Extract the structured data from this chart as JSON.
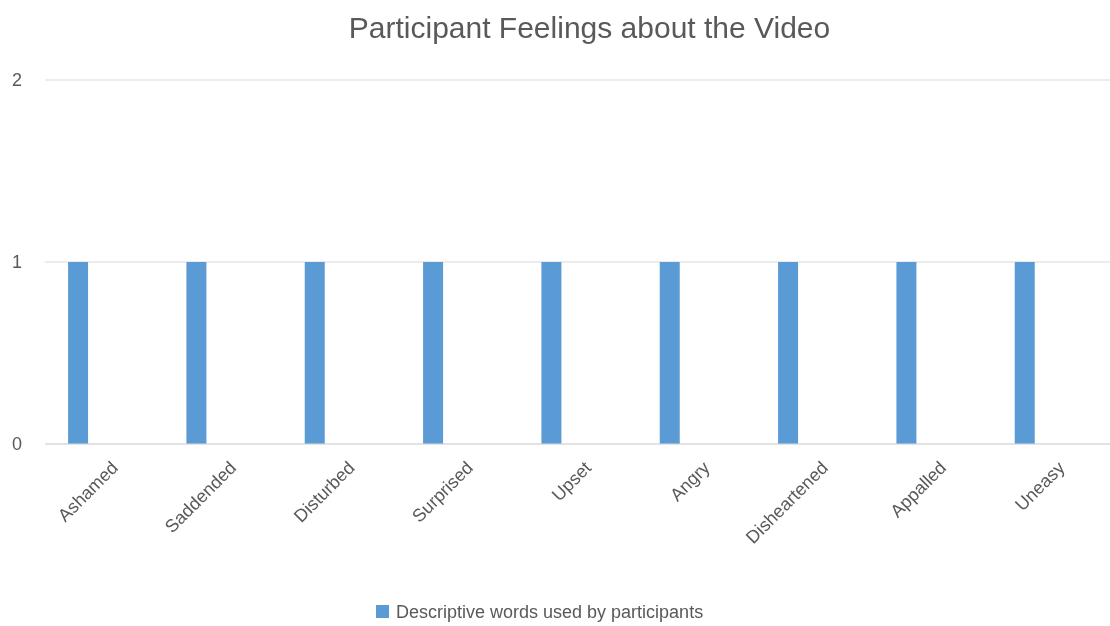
{
  "chart_data": {
    "type": "bar",
    "title": "Participant Feelings about the Video",
    "categories": [
      "Ashamed",
      "Saddended",
      "Disturbed",
      "Surprised",
      "Upset",
      "Angry",
      "Disheartened",
      "Appalled",
      "Uneasy"
    ],
    "series": [
      {
        "name": "Descriptive words used by participants",
        "color": "#5b9bd5",
        "values": [
          1,
          1,
          1,
          1,
          1,
          1,
          1,
          1,
          1
        ]
      }
    ],
    "ylim": [
      0,
      2
    ],
    "yticks": [
      0,
      1,
      2
    ],
    "grid": "y",
    "legend": "bottom"
  }
}
